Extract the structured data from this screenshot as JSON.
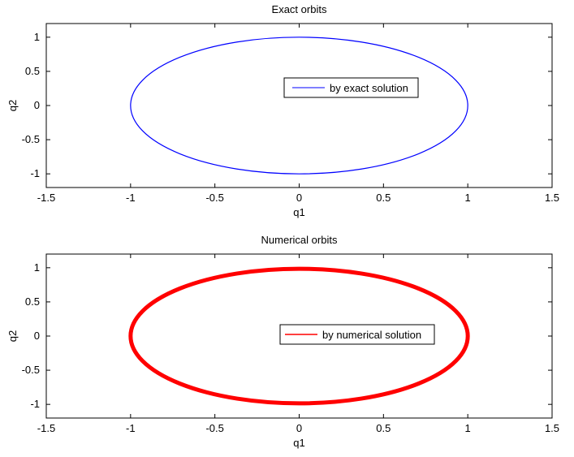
{
  "chart_data": [
    {
      "type": "line",
      "title": "Exact orbits",
      "xlabel": "q1",
      "ylabel": "q2",
      "xlim": [
        -1.5,
        1.5
      ],
      "ylim": [
        -1.2,
        1.2
      ],
      "xticks": [
        -1.5,
        -1,
        -0.5,
        0,
        0.5,
        1,
        1.5
      ],
      "xtick_labels": [
        "-1.5",
        "-1",
        "-0.5",
        "0",
        "0.5",
        "1",
        "1.5"
      ],
      "yticks": [
        1,
        0.5,
        0,
        -0.5,
        -1
      ],
      "ytick_labels": [
        "1",
        "0.5",
        "0",
        "-0.5",
        "-1"
      ],
      "grid": false,
      "legend_position": "center-right",
      "series": [
        {
          "name": "by exact solution",
          "color": "#0000ff",
          "shape": "ellipse",
          "center": [
            0,
            0
          ],
          "semi_axes": [
            1,
            1
          ],
          "line_weight": "thin"
        }
      ]
    },
    {
      "type": "line",
      "title": "Numerical orbits",
      "xlabel": "q1",
      "ylabel": "q2",
      "xlim": [
        -1.5,
        1.5
      ],
      "ylim": [
        -1.2,
        1.2
      ],
      "xticks": [
        -1.5,
        -1,
        -0.5,
        0,
        0.5,
        1,
        1.5
      ],
      "xtick_labels": [
        "-1.5",
        "-1",
        "-0.5",
        "0",
        "0.5",
        "1",
        "1.5"
      ],
      "yticks": [
        1,
        0.5,
        0,
        -0.5,
        -1
      ],
      "ytick_labels": [
        "1",
        "0.5",
        "0",
        "-0.5",
        "-1"
      ],
      "grid": false,
      "legend_position": "center-right",
      "series": [
        {
          "name": "by numerical solution",
          "color": "#ff0000",
          "shape": "ellipse",
          "center": [
            0,
            0
          ],
          "semi_axes": [
            1,
            0.985
          ],
          "line_weight": "thick"
        }
      ]
    }
  ]
}
